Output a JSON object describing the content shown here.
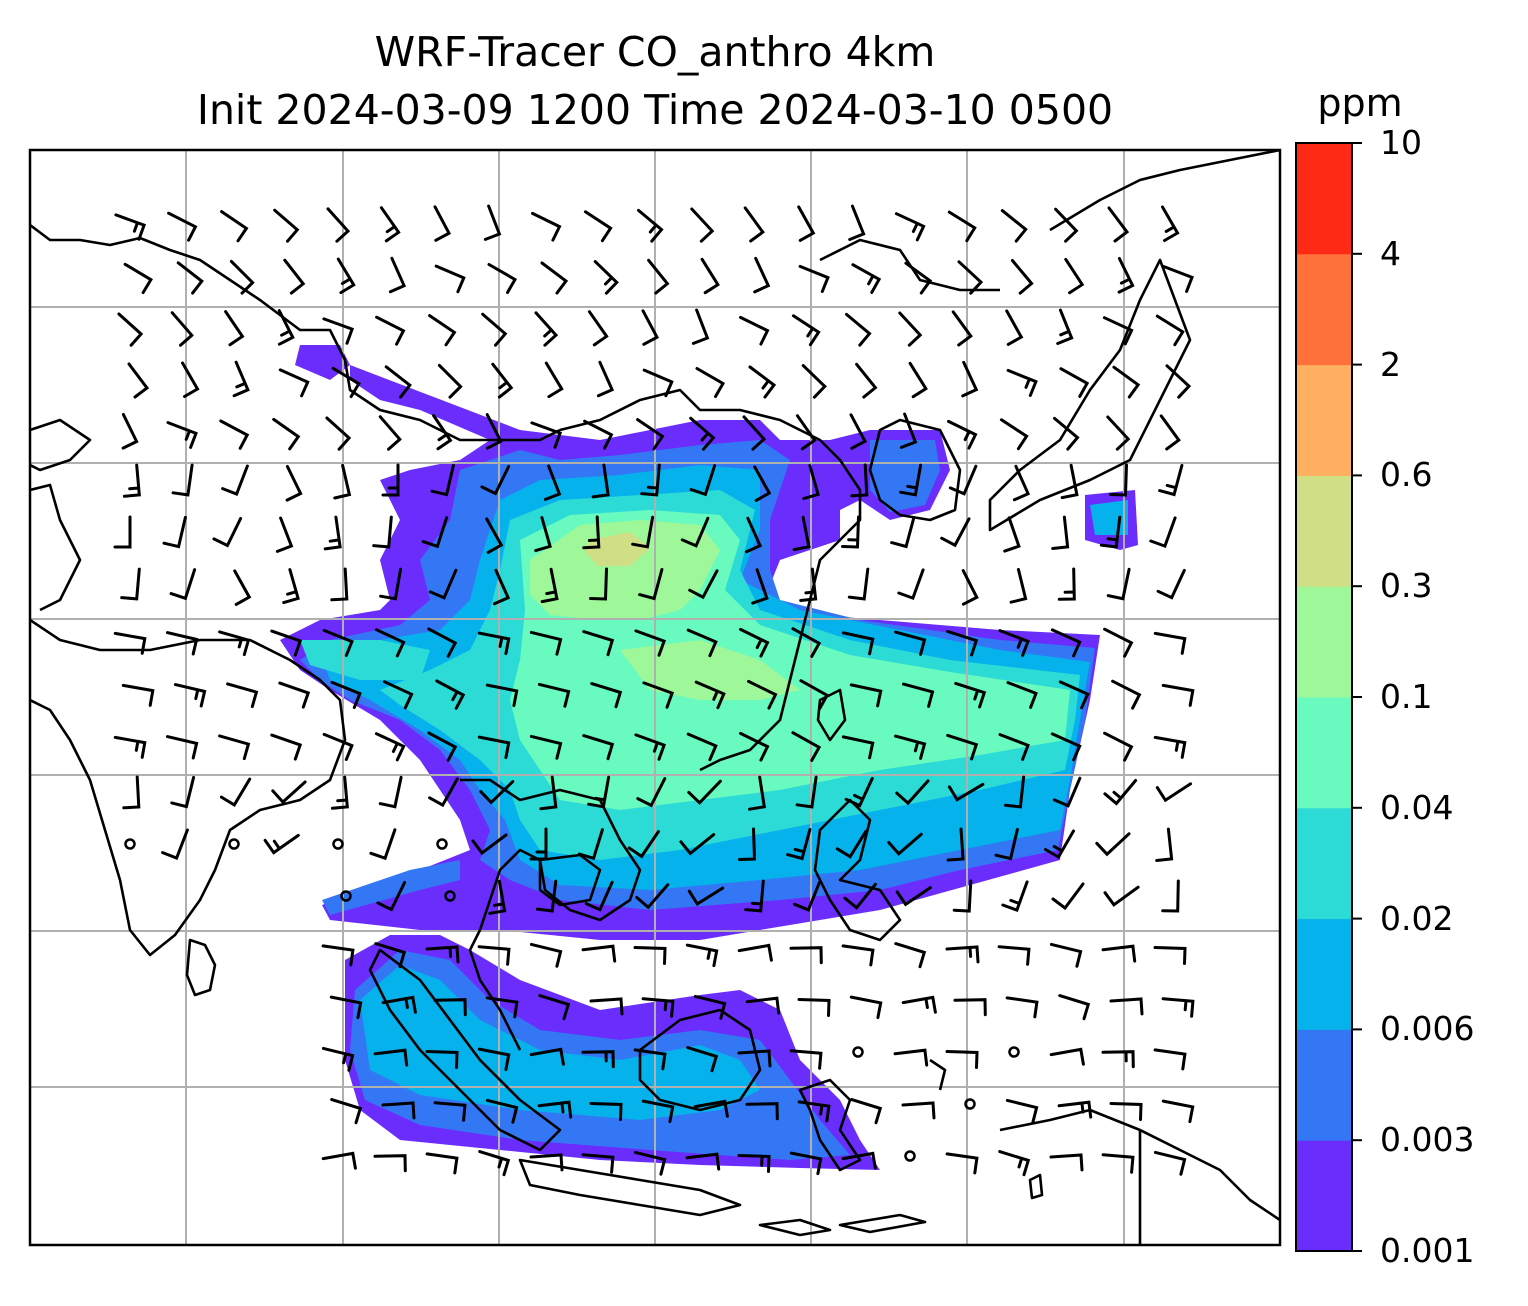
{
  "title": {
    "line1": "WRF-Tracer CO_anthro 4km",
    "line2": "Init 2024-03-09 1200 Time 2024-03-10 0500"
  },
  "colorbar": {
    "unit": "ppm",
    "levels": [
      "0.001",
      "0.003",
      "0.006",
      "0.02",
      "0.04",
      "0.1",
      "0.3",
      "0.6",
      "2",
      "4",
      "10"
    ],
    "colors": [
      "#6a2dfc",
      "#3477f5",
      "#05b2ec",
      "#2ddbd6",
      "#68fabf",
      "#9ef89a",
      "#d0df86",
      "#ffaf60",
      "#ff713a",
      "#ff2a15"
    ]
  },
  "map": {
    "region": "South and East Asia",
    "field": "CO_anthro",
    "gridlines": true,
    "coastlines": true,
    "wind_barbs": true
  }
}
